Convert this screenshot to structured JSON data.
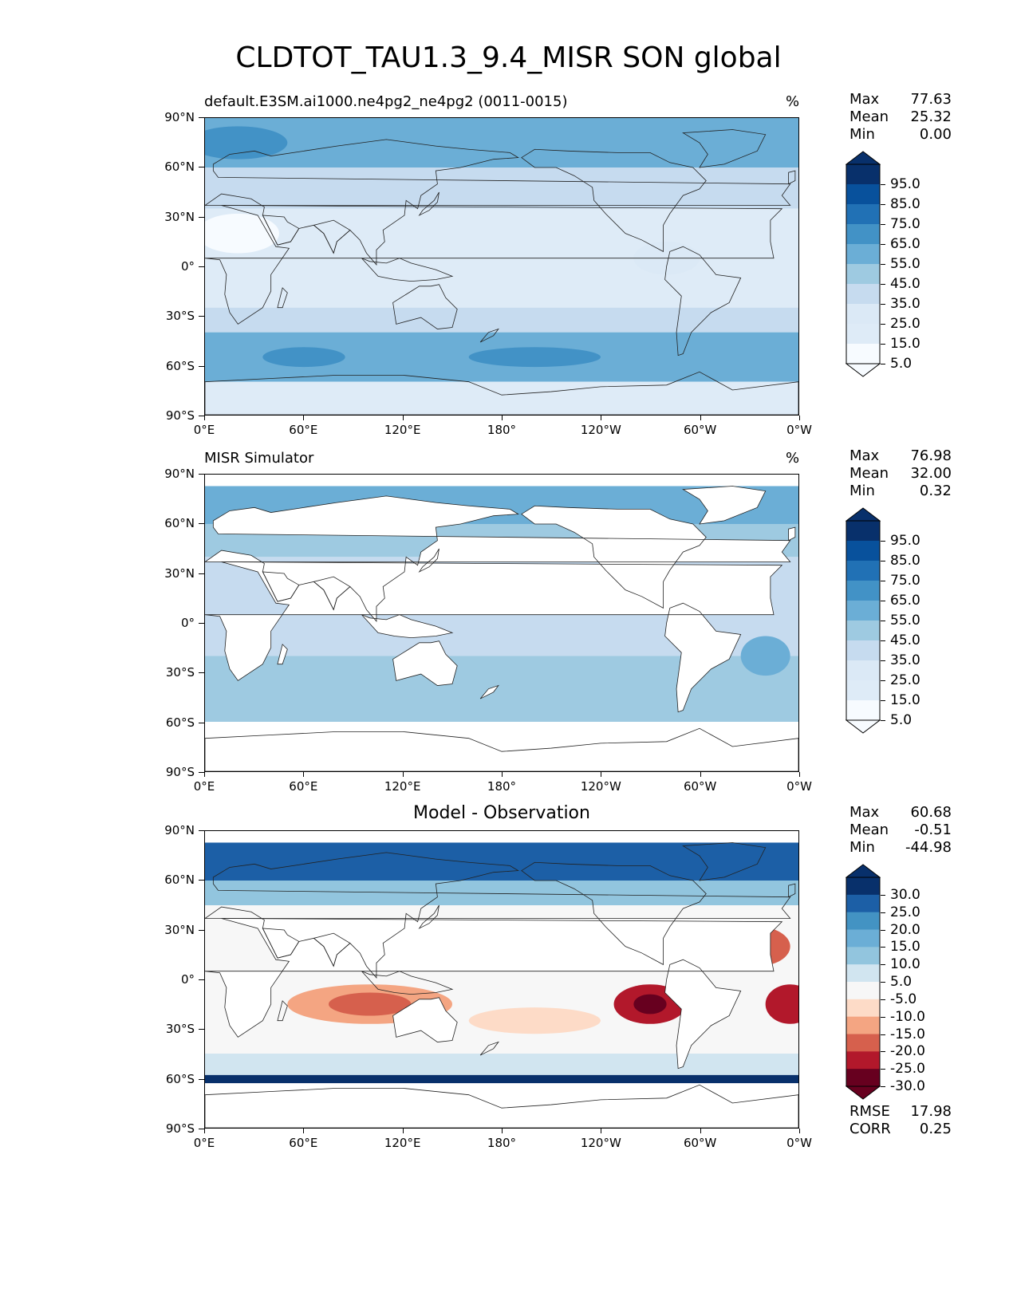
{
  "figure": {
    "title": "CLDTOT_TAU1.3_9.4_MISR SON global"
  },
  "axes": {
    "lat_labels": [
      "90°N",
      "60°N",
      "30°N",
      "0°",
      "30°S",
      "60°S",
      "90°S"
    ],
    "lon_labels": [
      "0°E",
      "60°E",
      "120°E",
      "180°",
      "120°W",
      "60°W",
      "0°W"
    ]
  },
  "panels": [
    {
      "title": "default.E3SM.ai1000.ne4pg2_ne4pg2 (0011-0015)",
      "units": "%",
      "stats": {
        "Max": "77.63",
        "Mean": "25.32",
        "Min": "0.00"
      },
      "colorbar": {
        "labels": [
          "95.0",
          "85.0",
          "75.0",
          "65.0",
          "55.0",
          "45.0",
          "35.0",
          "25.0",
          "15.0",
          "5.0"
        ],
        "colors": [
          "#08306b",
          "#08519c",
          "#2171b5",
          "#4292c6",
          "#6baed6",
          "#9ecae1",
          "#c6dbef",
          "#dbe9f6",
          "#deebf7",
          "#f7fbff"
        ]
      }
    },
    {
      "title": "MISR Simulator",
      "units": "%",
      "stats": {
        "Max": "76.98",
        "Mean": "32.00",
        "Min": "0.32"
      },
      "colorbar": {
        "labels": [
          "95.0",
          "85.0",
          "75.0",
          "65.0",
          "55.0",
          "45.0",
          "35.0",
          "25.0",
          "15.0",
          "5.0"
        ],
        "colors": [
          "#08306b",
          "#08519c",
          "#2171b5",
          "#4292c6",
          "#6baed6",
          "#9ecae1",
          "#c6dbef",
          "#dbe9f6",
          "#deebf7",
          "#f7fbff"
        ]
      }
    },
    {
      "title": "Model - Observation",
      "units": "",
      "stats": {
        "Max": "60.68",
        "Mean": "-0.51",
        "Min": "-44.98"
      },
      "metrics": {
        "RMSE": "17.98",
        "CORR": "0.25"
      },
      "colorbar": {
        "labels": [
          "30.0",
          "25.0",
          "20.0",
          "15.0",
          "10.0",
          "5.0",
          "-5.0",
          "-10.0",
          "-15.0",
          "-20.0",
          "-25.0",
          "-30.0"
        ],
        "colors": [
          "#08306b",
          "#1c5fa6",
          "#4393c3",
          "#6baed6",
          "#92c5de",
          "#d1e5f0",
          "#f7f7f7",
          "#fddbc7",
          "#f4a582",
          "#d6604d",
          "#b2182b",
          "#67001f"
        ]
      }
    }
  ]
}
